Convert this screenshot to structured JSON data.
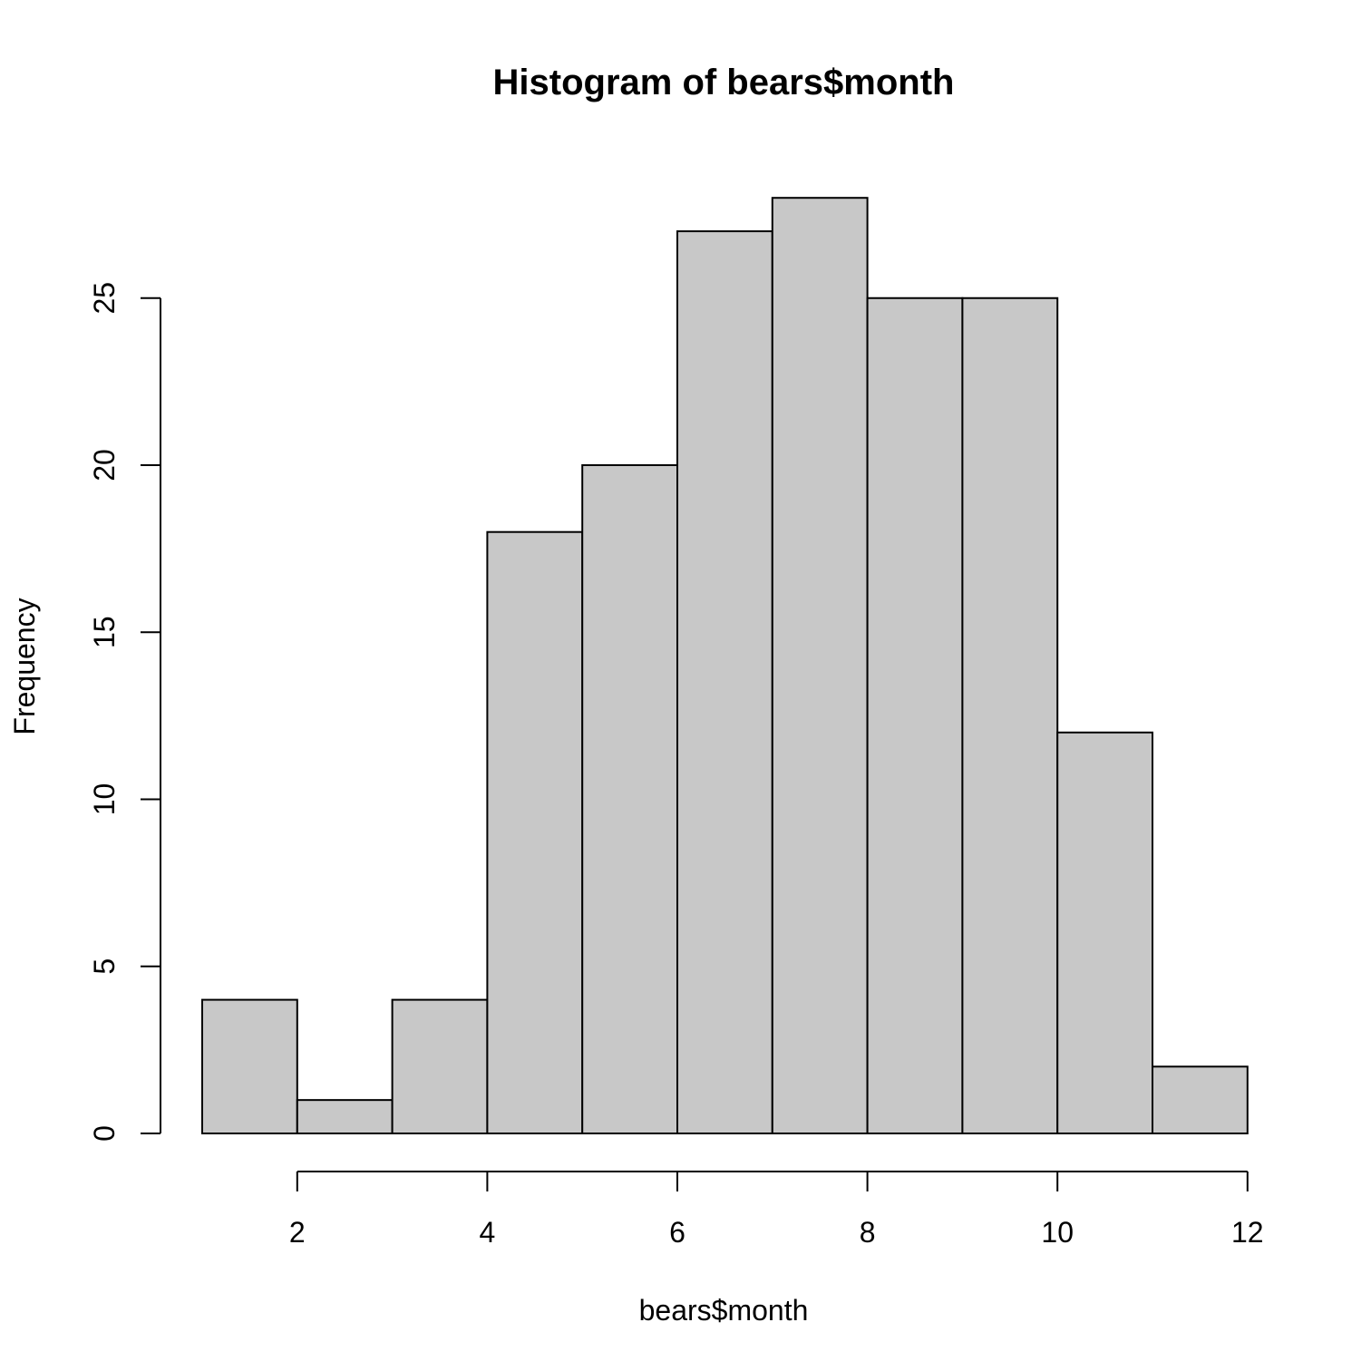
{
  "chart_data": {
    "type": "bar",
    "title": "Histogram of bears$month",
    "xlabel": "bears$month",
    "ylabel": "Frequency",
    "bins": [
      {
        "start": 1,
        "end": 2,
        "count": 4
      },
      {
        "start": 2,
        "end": 3,
        "count": 1
      },
      {
        "start": 3,
        "end": 4,
        "count": 4
      },
      {
        "start": 4,
        "end": 5,
        "count": 18
      },
      {
        "start": 5,
        "end": 6,
        "count": 20
      },
      {
        "start": 6,
        "end": 7,
        "count": 27
      },
      {
        "start": 7,
        "end": 8,
        "count": 28
      },
      {
        "start": 8,
        "end": 9,
        "count": 25
      },
      {
        "start": 9,
        "end": 10,
        "count": 25
      },
      {
        "start": 10,
        "end": 11,
        "count": 12
      },
      {
        "start": 11,
        "end": 12,
        "count": 2
      }
    ],
    "x_ticks": [
      "2",
      "4",
      "6",
      "8",
      "10",
      "12"
    ],
    "y_ticks": [
      "0",
      "5",
      "10",
      "15",
      "20",
      "25"
    ],
    "xlim": [
      1,
      12
    ],
    "ylim": [
      0,
      28
    ],
    "grid": false,
    "bar_color": "#c8c8c8",
    "edge_color": "#000000"
  }
}
